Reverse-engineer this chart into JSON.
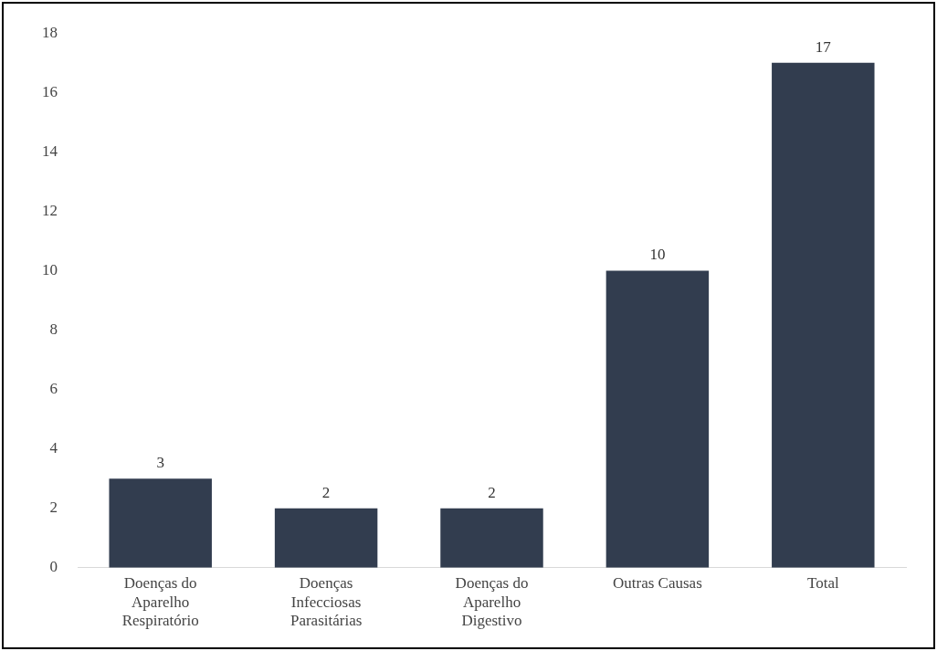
{
  "chart_data": {
    "type": "bar",
    "categories": [
      "Doenças do Aparelho Respiratório",
      "Doenças Infecciosas Parasitárias",
      "Doenças do Aparelho Digestivo",
      "Outras Causas",
      "Total"
    ],
    "values": [
      3,
      2,
      2,
      10,
      17
    ],
    "color": "#323d4f",
    "ylim": [
      0,
      18
    ],
    "yticks": [
      0,
      2,
      4,
      6,
      8,
      10,
      12,
      14,
      16,
      18
    ],
    "grid": false,
    "data_labels": true
  }
}
